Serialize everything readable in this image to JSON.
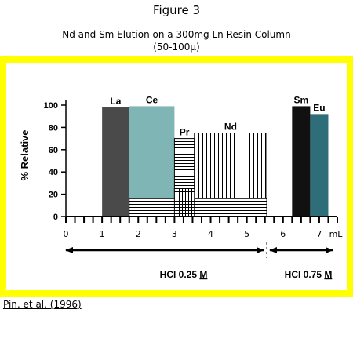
{
  "figure": {
    "title": "Figure 3",
    "subtitle_line1": "Nd and Sm Elution on a 300mg Ln Resin Column",
    "subtitle_line2": "(50-100μ)",
    "citation": "Pin, et al. (1996)"
  },
  "chart_data": {
    "type": "bar",
    "ylabel": "% Relative",
    "xunit": "mL",
    "xlim": [
      0,
      7.5
    ],
    "ylim": [
      0,
      100
    ],
    "xticks": [
      "0",
      "1",
      "2",
      "3",
      "4",
      "5",
      "6",
      "7"
    ],
    "yticks": [
      "0",
      "20",
      "40",
      "60",
      "80",
      "100"
    ],
    "bars": [
      {
        "name": "La",
        "x_start": 1.0,
        "x_end": 1.75,
        "value": 98,
        "color": "#4a4a4a",
        "pattern": "solid"
      },
      {
        "name": "Ce",
        "x_start": 1.75,
        "x_end": 3.0,
        "value": 99,
        "color": "#7fb6b5",
        "pattern": "solid"
      },
      {
        "name": "Pr",
        "x_start": 3.0,
        "x_end": 3.55,
        "value": 70,
        "color": "#000000",
        "pattern": "horizontal"
      },
      {
        "name": "Nd",
        "x_start": 3.55,
        "x_end": 5.55,
        "value": 75,
        "color": "#000000",
        "pattern": "vertical"
      },
      {
        "name": "Sm",
        "x_start": 6.25,
        "x_end": 6.75,
        "value": 99,
        "color": "#111111",
        "pattern": "solid"
      },
      {
        "name": "Eu",
        "x_start": 6.75,
        "x_end": 7.25,
        "value": 92,
        "color": "#2d6e78",
        "pattern": "solid"
      }
    ],
    "overlays": [
      {
        "label": "Ce tail",
        "x_start": 1.75,
        "x_end": 5.55,
        "value": 16,
        "pattern": "horizontal"
      },
      {
        "label": "Pr low",
        "x_start": 3.0,
        "x_end": 3.55,
        "value": 25,
        "pattern": "grid"
      }
    ],
    "eluents": [
      {
        "label": "HCl 0.25 ",
        "molar": "M",
        "x_start": 0.0,
        "x_end": 5.55
      },
      {
        "label": "HCl 0.75 ",
        "molar": "M",
        "x_start": 5.55,
        "x_end": 7.5
      }
    ]
  }
}
